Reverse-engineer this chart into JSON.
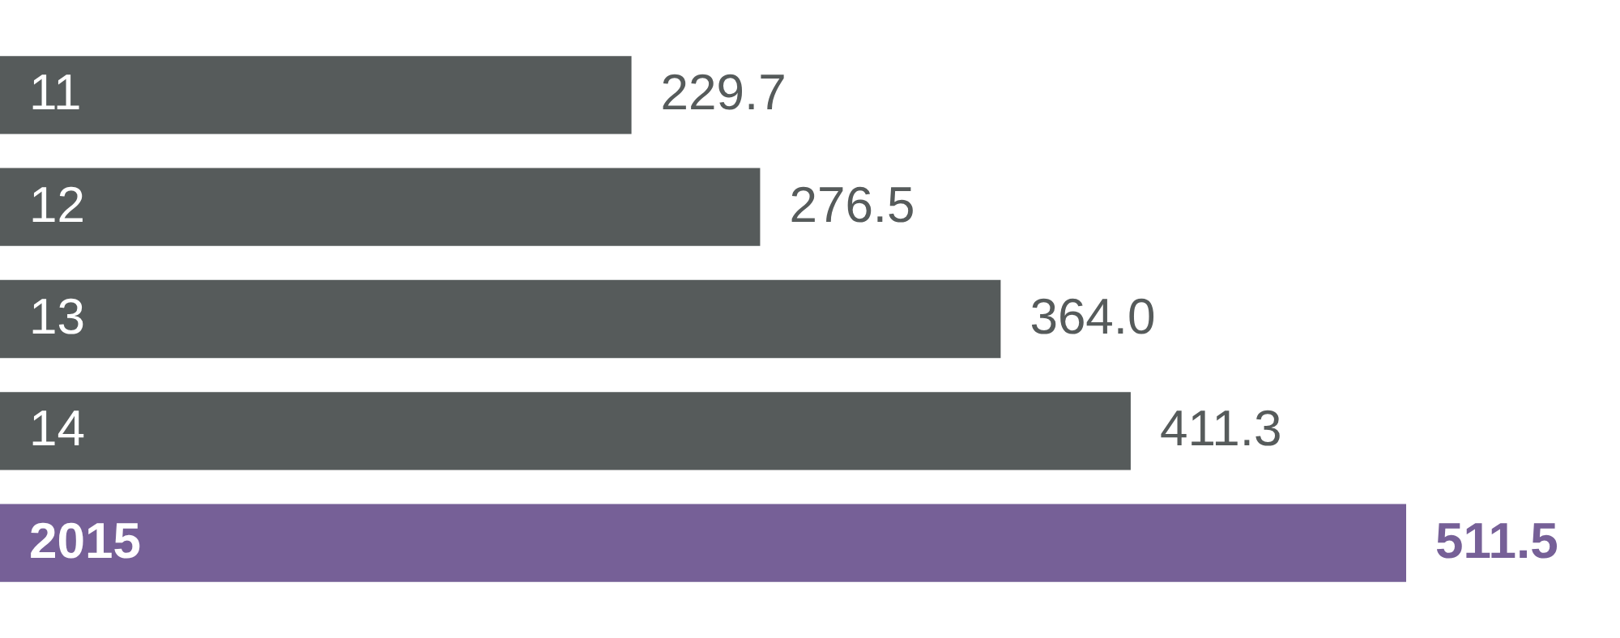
{
  "chart_data": {
    "type": "bar",
    "orientation": "horizontal",
    "categories": [
      "11",
      "12",
      "13",
      "14",
      "2015"
    ],
    "values": [
      229.7,
      276.5,
      364.0,
      411.3,
      511.5
    ],
    "colors": [
      "#565b5b",
      "#565b5b",
      "#565b5b",
      "#565b5b",
      "#766097"
    ],
    "value_labels": [
      "229.7",
      "276.5",
      "364.0",
      "411.3",
      "511.5"
    ]
  }
}
